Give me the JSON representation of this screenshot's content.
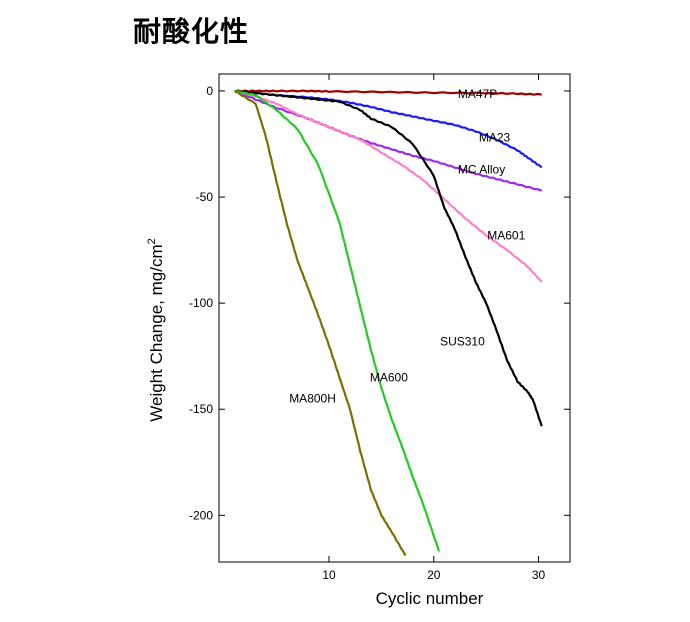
{
  "page": {
    "title": "耐酸化性"
  },
  "chart_data": {
    "type": "line",
    "title": "耐酸化性",
    "xlabel": "Cyclic number",
    "ylabel": "Weight Change, mg/cm²",
    "ylabel_main": "Weight Change, mg/cm",
    "ylabel_sup": "2",
    "xlim": [
      -0.5,
      33
    ],
    "ylim": [
      -222,
      8
    ],
    "xticks": [
      10,
      20,
      30
    ],
    "yticks": [
      0,
      -50,
      -100,
      -150,
      -200
    ],
    "grid": false,
    "series": [
      {
        "name": "MA47P",
        "label": "MA47P",
        "color": "#a00000",
        "x": [
          1,
          3,
          5,
          8,
          10,
          15,
          20,
          25,
          28,
          30.3
        ],
        "y": [
          0,
          0,
          0,
          0,
          -0.2,
          -0.5,
          -0.8,
          -1,
          -1.3,
          -1.7
        ]
      },
      {
        "name": "MA23",
        "label": "MA23",
        "color": "#1a1aff",
        "x": [
          1,
          3,
          5,
          8,
          10,
          12,
          14,
          16,
          18,
          20,
          22,
          24,
          26,
          28,
          29,
          30.3
        ],
        "y": [
          0,
          -1,
          -2,
          -3,
          -4,
          -5.5,
          -7.5,
          -10,
          -12,
          -14,
          -16,
          -19,
          -23,
          -28,
          -31.5,
          -36
        ]
      },
      {
        "name": "MC Alloy",
        "label": "MC Alloy",
        "color": "#9a2ee8",
        "x": [
          1,
          3,
          5,
          8,
          10,
          12,
          14,
          16,
          18,
          20,
          22,
          24,
          26,
          28,
          30.3
        ],
        "y": [
          0,
          -4,
          -8,
          -13,
          -17,
          -21,
          -24.5,
          -27.5,
          -30.5,
          -33,
          -36,
          -39,
          -41.5,
          -44,
          -47
        ]
      },
      {
        "name": "MA601",
        "label": "MA601",
        "color": "#ff80c8",
        "x": [
          1,
          3,
          5,
          7,
          9,
          11,
          13,
          15,
          17,
          19,
          21,
          23,
          25,
          27,
          29,
          30.3
        ],
        "y": [
          0,
          -2.5,
          -6,
          -11,
          -15,
          -19,
          -23,
          -29,
          -35,
          -42,
          -51,
          -60,
          -68,
          -75,
          -83,
          -90
        ]
      },
      {
        "name": "SUS310",
        "label": "SUS310",
        "color": "#000000",
        "x": [
          1,
          3,
          5,
          7,
          9,
          11,
          13,
          14,
          16,
          18,
          20,
          21,
          22,
          23,
          24,
          25,
          26,
          27,
          28,
          29,
          29.5,
          30.3
        ],
        "y": [
          0,
          -1,
          -2,
          -3,
          -4,
          -5,
          -9,
          -13,
          -17,
          -25,
          -40,
          -55,
          -65,
          -78,
          -90,
          -100,
          -113,
          -127,
          -137,
          -142,
          -146,
          -158
        ]
      },
      {
        "name": "MA600",
        "label": "MA600",
        "color": "#22cc22",
        "x": [
          1,
          3,
          5,
          7,
          9,
          11,
          12,
          13,
          14,
          15,
          16,
          17,
          18,
          19,
          20.5
        ],
        "y": [
          0,
          -2,
          -9,
          -18,
          -35,
          -62,
          -82,
          -102,
          -122,
          -140,
          -155,
          -168,
          -182,
          -195,
          -217
        ]
      },
      {
        "name": "MA800H",
        "label": "MA800H",
        "color": "#7a7000",
        "x": [
          1,
          3,
          4,
          5,
          6,
          7,
          8,
          9,
          10,
          11,
          12,
          13,
          14,
          15,
          16,
          17.3
        ],
        "y": [
          0,
          -6,
          -22,
          -43,
          -63,
          -80,
          -93,
          -106,
          -120,
          -135,
          -150,
          -170,
          -188,
          -200,
          -208,
          -219
        ]
      }
    ]
  }
}
